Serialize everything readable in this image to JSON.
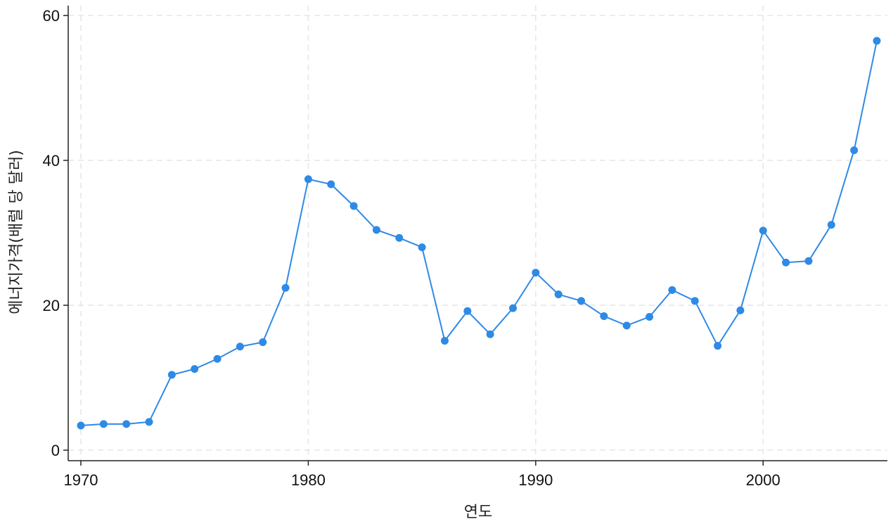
{
  "chart_data": {
    "type": "line",
    "xlabel": "연도",
    "ylabel": "에너지가격(배럴 당 달러)",
    "xlim": [
      1970,
      2005
    ],
    "ylim": [
      0,
      60
    ],
    "xticks": [
      1970,
      1980,
      1990,
      2000
    ],
    "yticks": [
      0,
      20,
      40,
      60
    ],
    "grid": true,
    "colors": {
      "series": "#2e8ae6",
      "grid": "#e6e6e6",
      "axis": "#222222"
    },
    "series": [
      {
        "x": [
          1970,
          1971,
          1972,
          1973,
          1974,
          1975,
          1976,
          1977,
          1978,
          1979,
          1980,
          1981,
          1982,
          1983,
          1984,
          1985,
          1986,
          1987,
          1988,
          1989,
          1990,
          1991,
          1992,
          1993,
          1994,
          1995,
          1996,
          1997,
          1998,
          1999,
          2000,
          2001,
          2002,
          2003,
          2004,
          2005
        ],
        "values": [
          3.4,
          3.6,
          3.6,
          3.9,
          10.4,
          11.2,
          12.6,
          14.3,
          14.9,
          22.4,
          37.4,
          36.7,
          33.7,
          30.4,
          29.3,
          28.0,
          15.1,
          19.2,
          16.0,
          19.6,
          24.5,
          21.5,
          20.6,
          18.5,
          17.2,
          18.4,
          22.1,
          20.6,
          14.4,
          19.3,
          30.3,
          25.9,
          26.1,
          31.1,
          41.4,
          56.5
        ]
      }
    ]
  }
}
